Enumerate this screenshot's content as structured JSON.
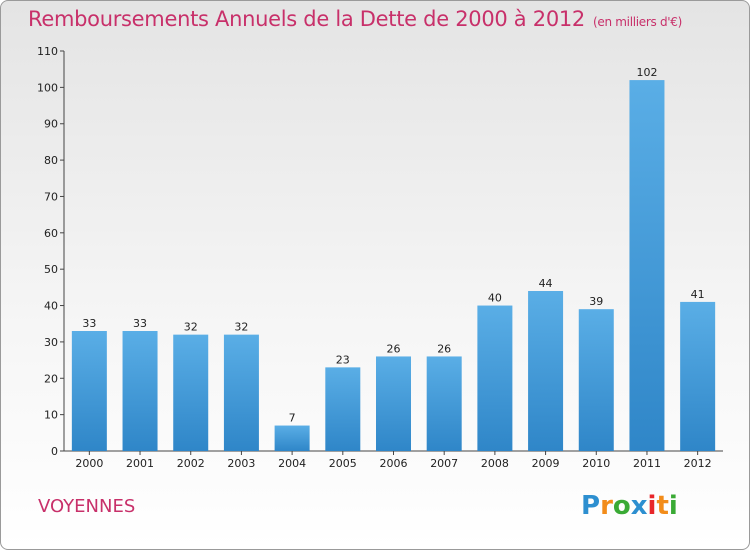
{
  "chart_data": {
    "type": "bar",
    "title": "Remboursements Annuels de la Dette de 2000 à 2012",
    "subtitle": "(en milliers d'€)",
    "categories": [
      "2000",
      "2001",
      "2002",
      "2003",
      "2004",
      "2005",
      "2006",
      "2007",
      "2008",
      "2009",
      "2010",
      "2011",
      "2012"
    ],
    "values": [
      33,
      33,
      32,
      32,
      7,
      23,
      26,
      26,
      40,
      44,
      39,
      102,
      41
    ],
    "ylim": [
      0,
      110
    ],
    "yticks": [
      0,
      10,
      20,
      30,
      40,
      50,
      60,
      70,
      80,
      90,
      100,
      110
    ],
    "grid": false,
    "bar_color_top": "#5aaee6",
    "bar_color_bottom": "#2f86c8"
  },
  "commune": "VOYENNES",
  "logo": {
    "text": "Proxiti",
    "letters": [
      "P",
      "r",
      "o",
      "x",
      "i",
      "t",
      "i"
    ]
  }
}
